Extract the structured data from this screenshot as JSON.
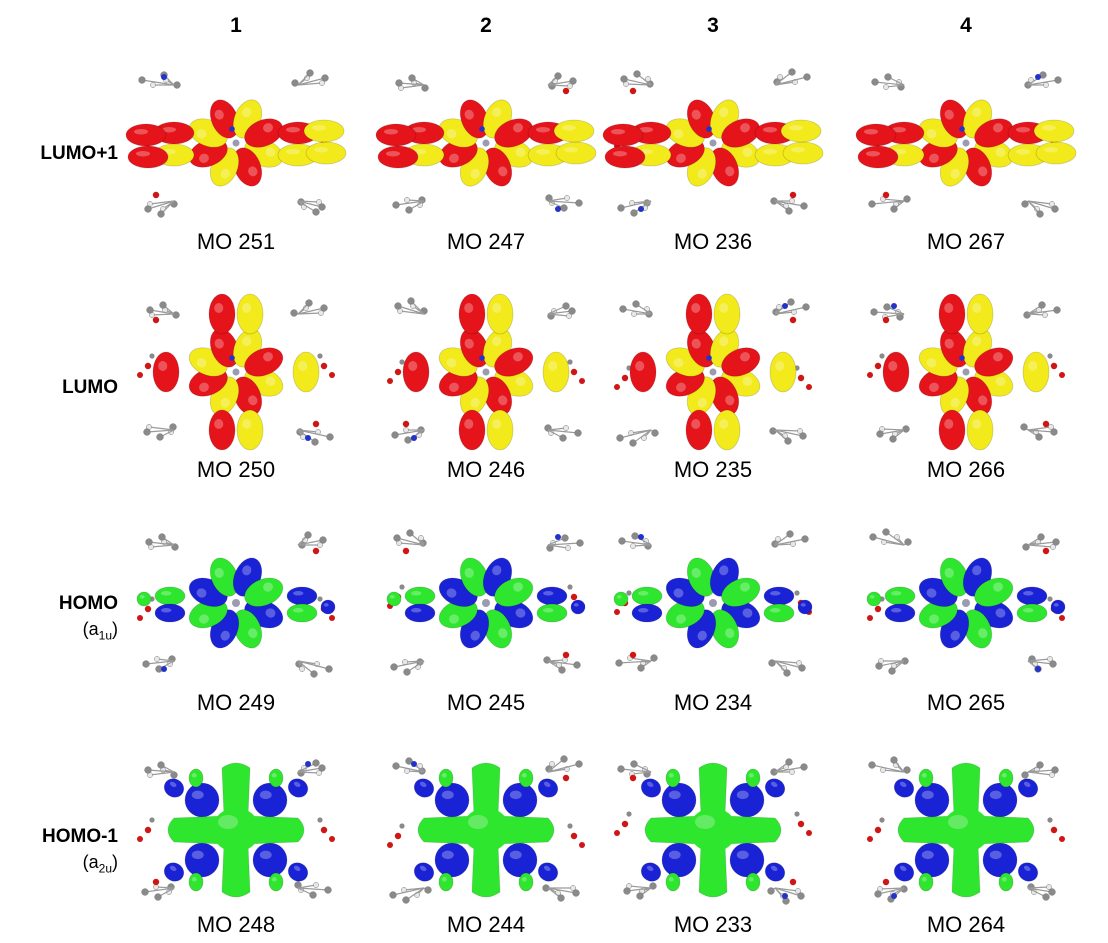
{
  "columns": [
    "1",
    "2",
    "3",
    "4"
  ],
  "rows": [
    {
      "label": "LUMO+1",
      "symmetry": null,
      "phase_colors": [
        "#e5131a",
        "#f2ea1a"
      ],
      "mos": [
        "MO 251",
        "MO 247",
        "MO 236",
        "MO 267"
      ]
    },
    {
      "label": "LUMO",
      "symmetry": null,
      "phase_colors": [
        "#e5131a",
        "#f2ea1a"
      ],
      "mos": [
        "MO 250",
        "MO 246",
        "MO 235",
        "MO 266"
      ]
    },
    {
      "label": "HOMO",
      "symmetry": {
        "base": "a",
        "sub": "1u"
      },
      "phase_colors": [
        "#1a22d6",
        "#2fe62f"
      ],
      "mos": [
        "MO 249",
        "MO 245",
        "MO 234",
        "MO 265"
      ]
    },
    {
      "label": "HOMO-1",
      "symmetry": {
        "base": "a",
        "sub": "2u"
      },
      "phase_colors": [
        "#1a22d6",
        "#2fe62f"
      ],
      "mos": [
        "MO 248",
        "MO 244",
        "MO 233",
        "MO 264"
      ]
    }
  ],
  "orbital_icons": [
    "lumo-plus-1-orbital-icon",
    "lumo-orbital-icon",
    "homo-a1u-orbital-icon",
    "homo-minus-1-a2u-orbital-icon"
  ]
}
